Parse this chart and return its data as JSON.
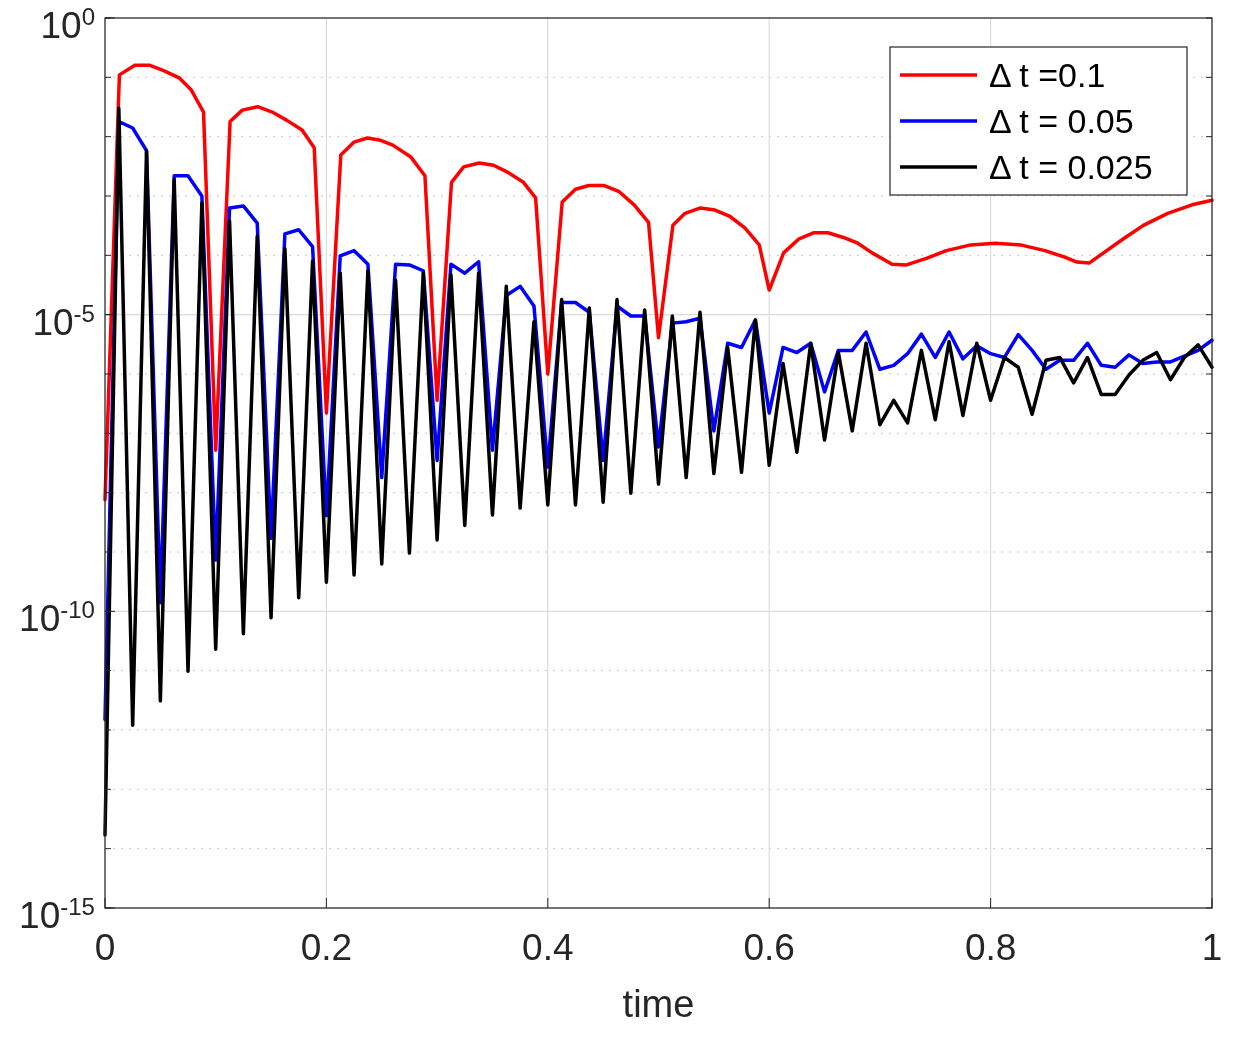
{
  "chart_data": {
    "type": "line",
    "xlabel": "time",
    "log": "y",
    "grid": true,
    "legend": "top right",
    "line_style": "solid",
    "marker": "none",
    "xlim": [
      0,
      1
    ],
    "ylim": [
      1e-15,
      1
    ],
    "xticks": [
      0,
      0.2,
      0.4,
      0.6,
      0.8,
      1
    ],
    "yticks": [
      {
        "value": 1e-15,
        "label": "10$^{-15}$"
      },
      {
        "value": 1e-10,
        "label": "10$^{-10}$"
      },
      {
        "value": 1e-05,
        "label": "10$^{-5}$"
      },
      {
        "value": 1,
        "label": "10$^{0}$"
      }
    ],
    "x": [
      0,
      0.0125,
      0.025,
      0.0375,
      0.05,
      0.0625,
      0.075,
      0.0875,
      0.1,
      0.1125,
      0.125,
      0.1375,
      0.15,
      0.1625,
      0.175,
      0.1875,
      0.2,
      0.2125,
      0.225,
      0.2375,
      0.25,
      0.2625,
      0.275,
      0.2875,
      0.3,
      0.3125,
      0.325,
      0.3375,
      0.35,
      0.3625,
      0.375,
      0.3875,
      0.4,
      0.4125,
      0.425,
      0.4375,
      0.45,
      0.4625,
      0.475,
      0.4875,
      0.5,
      0.5125,
      0.525,
      0.5375,
      0.55,
      0.5625,
      0.575,
      0.5875,
      0.6,
      0.6125,
      0.625,
      0.6375,
      0.65,
      0.6625,
      0.675,
      0.6875,
      0.7,
      0.7125,
      0.725,
      0.7375,
      0.75,
      0.7625,
      0.775,
      0.7875,
      0.8,
      0.8125,
      0.825,
      0.8375,
      0.85,
      0.8625,
      0.875,
      0.8875,
      0.9,
      0.9125,
      0.925,
      0.9375,
      0.95,
      0.9625,
      0.975,
      0.9875,
      1
    ],
    "series": [
      {
        "name": "Δ t =0.1",
        "color": "#ff0000",
        "x": [
          0,
          0.013,
          0.027,
          0.04,
          0.053,
          0.067,
          0.078,
          0.089,
          0.1,
          0.113,
          0.124,
          0.138,
          0.151,
          0.164,
          0.178,
          0.189,
          0.2,
          0.213,
          0.225,
          0.237,
          0.249,
          0.26,
          0.276,
          0.289,
          0.3,
          0.313,
          0.324,
          0.338,
          0.351,
          0.364,
          0.378,
          0.389,
          0.4,
          0.413,
          0.425,
          0.437,
          0.451,
          0.464,
          0.478,
          0.491,
          0.5,
          0.513,
          0.524,
          0.538,
          0.551,
          0.564,
          0.578,
          0.591,
          0.6,
          0.613,
          0.627,
          0.64,
          0.653,
          0.667,
          0.68,
          0.693,
          0.711,
          0.724,
          0.742,
          0.76,
          0.782,
          0.804,
          0.827,
          0.849,
          0.867,
          0.878,
          0.889,
          0.902,
          0.92,
          0.938,
          0.96,
          0.982,
          1
        ],
        "values": [
          7.6e-09,
          0.11,
          0.16,
          0.16,
          0.13,
          0.098,
          0.061,
          0.026,
          5.2e-08,
          0.018,
          0.028,
          0.032,
          0.026,
          0.019,
          0.013,
          0.0065,
          2.2e-07,
          0.0049,
          0.0081,
          0.0095,
          0.0087,
          0.0072,
          0.0046,
          0.0022,
          3.6e-07,
          0.0017,
          0.0031,
          0.0036,
          0.0033,
          0.0025,
          0.0017,
          0.00093,
          1e-06,
          0.00079,
          0.0013,
          0.0015,
          0.0015,
          0.0012,
          0.00071,
          0.00036,
          4.1e-06,
          0.00032,
          0.00051,
          0.00063,
          0.00058,
          0.00046,
          0.00029,
          0.00015,
          2.6e-05,
          0.00011,
          0.00019,
          0.00024,
          0.00024,
          0.0002,
          0.00016,
          0.00011,
          7.1e-05,
          6.9e-05,
          8.9e-05,
          0.00012,
          0.00015,
          0.00016,
          0.00015,
          0.00012,
          9.3e-05,
          7.7e-05,
          7.4e-05,
          0.00011,
          0.00019,
          0.00032,
          0.00051,
          0.00071,
          0.00085
        ]
      },
      {
        "name": "Δ t = 0.05",
        "color": "#0000ff",
        "values": [
          1.5e-12,
          0.018,
          0.014,
          0.0058,
          1.4e-10,
          0.0022,
          0.0022,
          0.001,
          7.3e-10,
          0.00063,
          0.00068,
          0.00035,
          1.7e-09,
          0.00023,
          0.00027,
          0.00014,
          4.1e-09,
          9.8e-05,
          0.00012,
          7.1e-05,
          1.8e-08,
          7.1e-05,
          6.9e-05,
          5.5e-05,
          3.5e-08,
          7.1e-05,
          5e-05,
          7.8e-05,
          5.2e-08,
          2.1e-05,
          3e-05,
          1.4e-05,
          2.7e-08,
          1.6e-05,
          1.6e-05,
          1.1e-05,
          3.5e-08,
          1.4e-05,
          9.5e-06,
          9.5e-06,
          5.9e-08,
          7.2e-06,
          7.6e-06,
          8.7e-06,
          1.1e-07,
          3.3e-06,
          2.8e-06,
          8.1e-06,
          2.2e-07,
          2.8e-06,
          2.3e-06,
          3.3e-06,
          5e-07,
          2.5e-06,
          2.5e-06,
          5.1e-06,
          1.2e-06,
          1.4e-06,
          2.2e-06,
          4.7e-06,
          1.9e-06,
          5.1e-06,
          1.8e-06,
          3e-06,
          2.2e-06,
          1.9e-06,
          4.6e-06,
          2.5e-06,
          1.2e-06,
          1.7e-06,
          1.7e-06,
          3.3e-06,
          1.4e-06,
          1.3e-06,
          2.1e-06,
          1.5e-06,
          1.6e-06,
          1.6e-06,
          2e-06,
          2.5e-06,
          3.7e-06
        ]
      },
      {
        "name": "Δ t = 0.025",
        "color": "#000000",
        "values": [
          1.7e-14,
          0.03,
          1.2e-12,
          0.0058,
          3.1e-12,
          0.0019,
          9.8e-12,
          0.00076,
          2.3e-11,
          0.00038,
          4.2e-11,
          0.00021,
          7.8e-11,
          0.00013,
          1.7e-10,
          8e-05,
          3.1e-10,
          5e-05,
          4.1e-10,
          5.5e-05,
          6.3e-10,
          3.8e-05,
          9.6e-10,
          5e-05,
          1.6e-09,
          4.7e-05,
          2.8e-09,
          5e-05,
          4.2e-09,
          3e-05,
          5.5e-09,
          7.6e-06,
          6.2e-09,
          1.8e-05,
          6.2e-09,
          1.3e-05,
          6.9e-09,
          1.8e-05,
          9.8e-09,
          1.2e-05,
          1.4e-08,
          9.5e-06,
          1.8e-08,
          1.1e-05,
          2.1e-08,
          2.8e-06,
          2.2e-08,
          8.1e-06,
          2.9e-08,
          1.5e-06,
          4.8e-08,
          3.3e-06,
          7.7e-08,
          2.3e-06,
          1.1e-07,
          3.3e-06,
          1.4e-07,
          3.6e-07,
          1.5e-07,
          2.5e-06,
          1.7e-07,
          3.5e-06,
          2e-07,
          3.3e-06,
          3.6e-07,
          1.9e-06,
          1.3e-06,
          2.1e-07,
          1.7e-06,
          1.9e-06,
          7.1e-07,
          1.9e-06,
          4.5e-07,
          4.5e-07,
          9.6e-07,
          1.7e-06,
          2.3e-06,
          8e-07,
          1.9e-06,
          3.1e-06,
          1.3e-06
        ]
      }
    ]
  }
}
